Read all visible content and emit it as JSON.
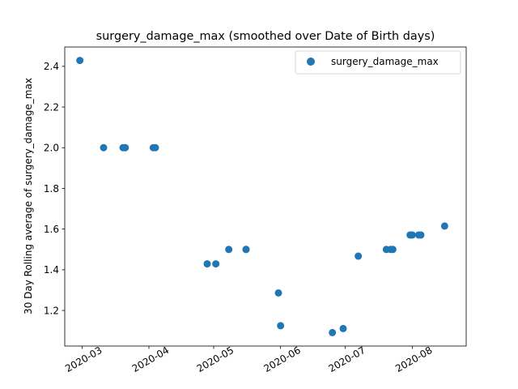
{
  "chart_data": {
    "type": "scatter",
    "title": "surgery_damage_max (smoothed over Date of Birth days)",
    "xlabel": "",
    "ylabel": "30 Day Rolling average of surgery_damage_max",
    "xlim": [
      "2020-02-22",
      "2020-08-26"
    ],
    "ylim": [
      1.025,
      2.495
    ],
    "grid": false,
    "legend": {
      "position": "upper right",
      "entries": [
        "surgery_damage_max"
      ]
    },
    "marker_color": "#1f77b4",
    "x_ticks": [
      "2020-03-01",
      "2020-04-01",
      "2020-05-01",
      "2020-06-01",
      "2020-07-01",
      "2020-08-01"
    ],
    "x_tick_labels": [
      "2020-03",
      "2020-04",
      "2020-05",
      "2020-06",
      "2020-07",
      "2020-08"
    ],
    "y_ticks": [
      1.2,
      1.4,
      1.6,
      1.8,
      2.0,
      2.2,
      2.4
    ],
    "y_tick_labels": [
      "1.2",
      "1.4",
      "1.6",
      "1.8",
      "2.0",
      "2.2",
      "2.4"
    ],
    "series": [
      {
        "name": "surgery_damage_max",
        "points": [
          {
            "x": "2020-02-29",
            "y": 2.429
          },
          {
            "x": "2020-03-11",
            "y": 2.0
          },
          {
            "x": "2020-03-20",
            "y": 2.0
          },
          {
            "x": "2020-03-21",
            "y": 2.0
          },
          {
            "x": "2020-03-21",
            "y": 2.0
          },
          {
            "x": "2020-04-03",
            "y": 2.0
          },
          {
            "x": "2020-04-04",
            "y": 2.0
          },
          {
            "x": "2020-04-28",
            "y": 1.429
          },
          {
            "x": "2020-05-02",
            "y": 1.429
          },
          {
            "x": "2020-05-08",
            "y": 1.5
          },
          {
            "x": "2020-05-16",
            "y": 1.5
          },
          {
            "x": "2020-05-16",
            "y": 1.5
          },
          {
            "x": "2020-05-31",
            "y": 1.286
          },
          {
            "x": "2020-06-01",
            "y": 1.125
          },
          {
            "x": "2020-06-25",
            "y": 1.091
          },
          {
            "x": "2020-06-30",
            "y": 1.111
          },
          {
            "x": "2020-07-07",
            "y": 1.467
          },
          {
            "x": "2020-07-20",
            "y": 1.5
          },
          {
            "x": "2020-07-22",
            "y": 1.5
          },
          {
            "x": "2020-07-23",
            "y": 1.5
          },
          {
            "x": "2020-07-31",
            "y": 1.571
          },
          {
            "x": "2020-08-01",
            "y": 1.571
          },
          {
            "x": "2020-08-04",
            "y": 1.571
          },
          {
            "x": "2020-08-05",
            "y": 1.571
          },
          {
            "x": "2020-08-16",
            "y": 1.615
          }
        ]
      }
    ]
  }
}
